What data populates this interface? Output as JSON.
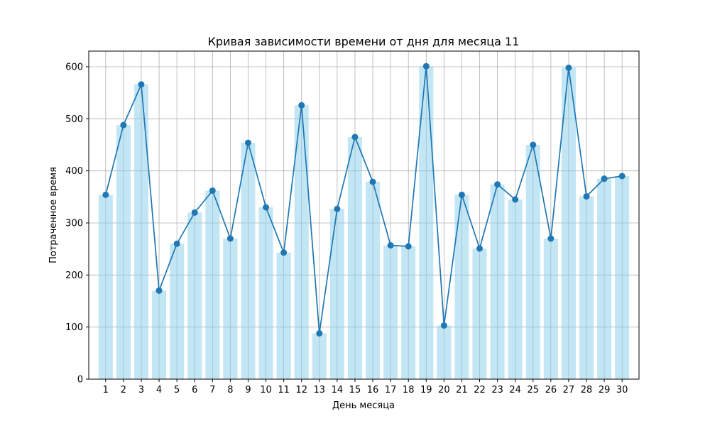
{
  "chart_data": {
    "type": "bar",
    "title": "Кривая зависимости времени от дня для месяца 11",
    "xlabel": "День месяца",
    "ylabel": "Потраченное время",
    "categories": [
      "1",
      "2",
      "3",
      "4",
      "5",
      "6",
      "7",
      "8",
      "9",
      "10",
      "11",
      "12",
      "13",
      "14",
      "15",
      "16",
      "17",
      "18",
      "19",
      "20",
      "21",
      "22",
      "23",
      "24",
      "25",
      "26",
      "27",
      "28",
      "29",
      "30"
    ],
    "values": [
      354,
      488,
      566,
      170,
      260,
      320,
      362,
      270,
      454,
      330,
      243,
      526,
      88,
      327,
      465,
      379,
      257,
      255,
      601,
      103,
      354,
      251,
      374,
      345,
      450,
      270,
      598,
      351,
      385,
      390
    ],
    "ylim": [
      0,
      630
    ],
    "yticks": [
      0,
      100,
      200,
      300,
      400,
      500,
      600
    ],
    "grid": true,
    "series": [
      {
        "type": "bar",
        "color": "#87ceeb",
        "opacity": 0.5
      },
      {
        "type": "line",
        "marker": "circle",
        "color": "#1f77b4"
      }
    ]
  }
}
